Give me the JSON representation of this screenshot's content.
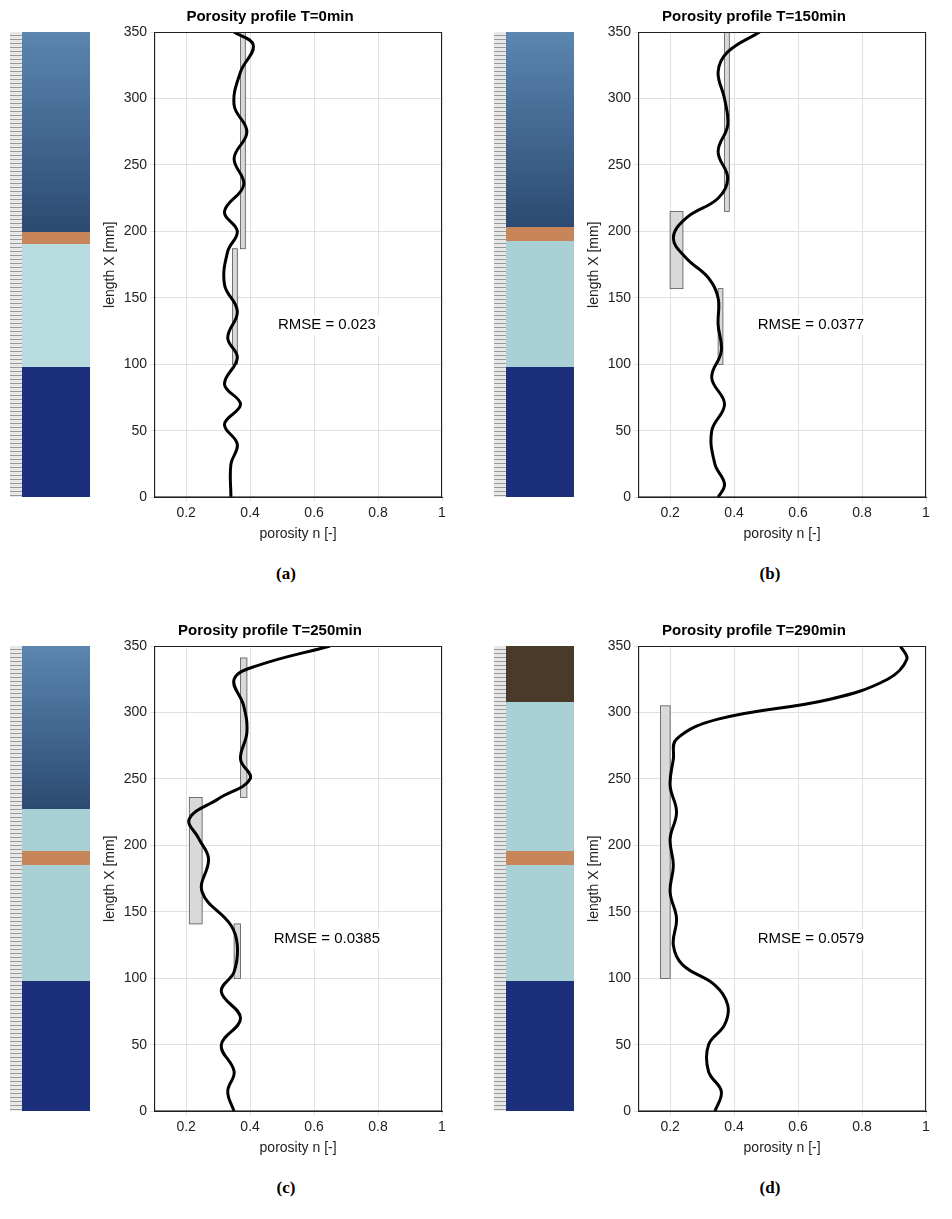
{
  "chart_data": [
    {
      "type": "line",
      "title": "Porosity profile T=0min",
      "panel_label": "(a)",
      "x_label": "porosity n [-]",
      "y_label": "length X [mm]",
      "xlim": [
        0.1,
        1
      ],
      "xticks": [
        0.2,
        0.4,
        0.6,
        0.8,
        1
      ],
      "ylim": [
        0,
        350
      ],
      "yticks": [
        0,
        50,
        100,
        150,
        200,
        250,
        300,
        350
      ],
      "grid": true,
      "annotation": "RMSE = 0.023",
      "series": [
        {
          "type": "line",
          "color": "#000000",
          "x": [
            0.34,
            0.34,
            0.36,
            0.32,
            0.37,
            0.32,
            0.36,
            0.33,
            0.36,
            0.32,
            0.33,
            0.36,
            0.32,
            0.38,
            0.35,
            0.39,
            0.35,
            0.37,
            0.41,
            0.35
          ],
          "y": [
            0,
            25,
            40,
            55,
            70,
            85,
            105,
            120,
            140,
            160,
            185,
            200,
            215,
            235,
            255,
            275,
            295,
            320,
            340,
            350
          ]
        },
        {
          "type": "band",
          "color": "#d9d9d9",
          "bands": [
            {
              "porosity": [
                0.345,
                0.36
              ],
              "length": [
                100,
                187
              ]
            },
            {
              "porosity": [
                0.37,
                0.385
              ],
              "length": [
                187,
                350
              ]
            }
          ]
        }
      ]
    },
    {
      "type": "line",
      "title": "Porosity profile T=150min",
      "panel_label": "(b)",
      "x_label": "porosity n [-]",
      "y_label": "length X [mm]",
      "xlim": [
        0.1,
        1
      ],
      "xticks": [
        0.2,
        0.4,
        0.6,
        0.8,
        1
      ],
      "ylim": [
        0,
        350
      ],
      "yticks": [
        0,
        50,
        100,
        150,
        200,
        250,
        300,
        350
      ],
      "grid": true,
      "annotation": "RMSE = 0.0377",
      "series": [
        {
          "type": "line",
          "color": "#000000",
          "x": [
            0.35,
            0.37,
            0.34,
            0.33,
            0.37,
            0.33,
            0.36,
            0.35,
            0.35,
            0.32,
            0.25,
            0.21,
            0.25,
            0.35,
            0.38,
            0.35,
            0.38,
            0.37,
            0.35,
            0.38,
            0.48
          ],
          "y": [
            0,
            10,
            25,
            50,
            70,
            90,
            110,
            130,
            150,
            165,
            180,
            195,
            210,
            225,
            240,
            260,
            280,
            300,
            320,
            335,
            350
          ]
        },
        {
          "type": "band",
          "color": "#d9d9d9",
          "bands": [
            {
              "porosity": [
                0.35,
                0.365
              ],
              "length": [
                100,
                157
              ]
            },
            {
              "porosity": [
                0.2,
                0.24
              ],
              "length": [
                157,
                215
              ]
            },
            {
              "porosity": [
                0.37,
                0.385
              ],
              "length": [
                215,
                350
              ]
            }
          ]
        }
      ]
    },
    {
      "type": "line",
      "title": "Porosity profile T=250min",
      "panel_label": "(c)",
      "x_label": "porosity n [-]",
      "y_label": "length X [mm]",
      "xlim": [
        0.1,
        1
      ],
      "xticks": [
        0.2,
        0.4,
        0.6,
        0.8,
        1
      ],
      "ylim": [
        0,
        350
      ],
      "yticks": [
        0,
        50,
        100,
        150,
        200,
        250,
        300,
        350
      ],
      "grid": true,
      "annotation": "RMSE = 0.0385",
      "series": [
        {
          "type": "line",
          "color": "#000000",
          "x": [
            0.35,
            0.33,
            0.35,
            0.31,
            0.37,
            0.31,
            0.35,
            0.36,
            0.34,
            0.25,
            0.27,
            0.24,
            0.21,
            0.3,
            0.4,
            0.37,
            0.39,
            0.38,
            0.35,
            0.42,
            0.65
          ],
          "y": [
            0,
            15,
            30,
            50,
            70,
            90,
            105,
            125,
            140,
            165,
            190,
            205,
            220,
            235,
            250,
            265,
            285,
            305,
            325,
            335,
            350
          ]
        },
        {
          "type": "band",
          "color": "#d9d9d9",
          "bands": [
            {
              "porosity": [
                0.35,
                0.37
              ],
              "length": [
                100,
                141
              ]
            },
            {
              "porosity": [
                0.21,
                0.25
              ],
              "length": [
                141,
                236
              ]
            },
            {
              "porosity": [
                0.37,
                0.39
              ],
              "length": [
                236,
                341
              ]
            }
          ]
        }
      ]
    },
    {
      "type": "line",
      "title": "Porosity profile T=290min",
      "panel_label": "(d)",
      "x_label": "porosity n [-]",
      "y_label": "length X [mm]",
      "xlim": [
        0.1,
        1
      ],
      "xticks": [
        0.2,
        0.4,
        0.6,
        0.8,
        1
      ],
      "ylim": [
        0,
        350
      ],
      "yticks": [
        0,
        50,
        100,
        150,
        200,
        250,
        300,
        350
      ],
      "grid": true,
      "annotation": "RMSE = 0.0579",
      "series": [
        {
          "type": "line",
          "color": "#000000",
          "x": [
            0.34,
            0.36,
            0.32,
            0.32,
            0.37,
            0.38,
            0.34,
            0.24,
            0.21,
            0.22,
            0.2,
            0.21,
            0.2,
            0.22,
            0.2,
            0.21,
            0.22,
            0.35,
            0.7,
            0.88,
            0.94,
            0.92
          ],
          "y": [
            0,
            15,
            30,
            50,
            65,
            80,
            95,
            110,
            125,
            145,
            165,
            185,
            205,
            225,
            245,
            265,
            280,
            295,
            310,
            325,
            340,
            350
          ]
        },
        {
          "type": "band",
          "color": "#d9d9d9",
          "bands": [
            {
              "porosity": [
                0.17,
                0.2
              ],
              "length": [
                100,
                305
              ]
            }
          ]
        }
      ]
    }
  ]
}
